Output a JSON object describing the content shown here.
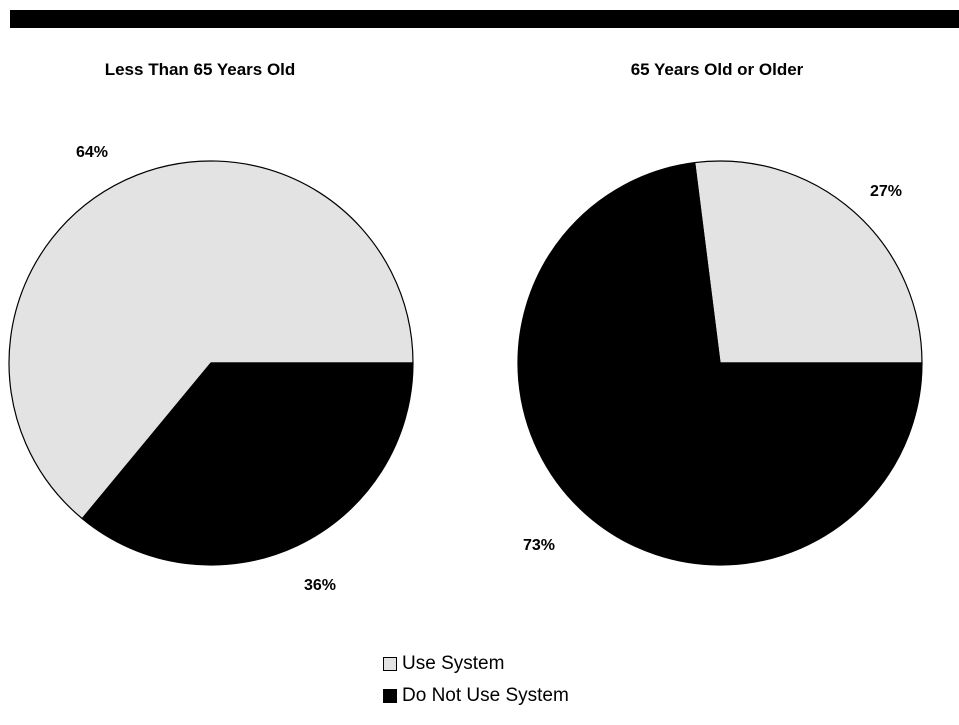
{
  "colors": {
    "use_system": "#e3e3e3",
    "do_not_use_system": "#000000",
    "outline": "#000000",
    "header_bar": "#000000"
  },
  "legend": {
    "items": [
      {
        "label": "Use System",
        "color": "#e3e3e3"
      },
      {
        "label": "Do Not Use System",
        "color": "#000000"
      }
    ],
    "placement": "bottom-center"
  },
  "chart_data": [
    {
      "type": "pie",
      "title": "Less Than 65 Years Old",
      "slices": [
        {
          "name": "Use System",
          "value": 64,
          "label": "64%"
        },
        {
          "name": "Do Not Use System",
          "value": 36,
          "label": "36%"
        }
      ]
    },
    {
      "type": "pie",
      "title": "65 Years Old or Older",
      "slices": [
        {
          "name": "Use System",
          "value": 27,
          "label": "27%"
        },
        {
          "name": "Do Not Use System",
          "value": 73,
          "label": "73%"
        }
      ]
    }
  ]
}
